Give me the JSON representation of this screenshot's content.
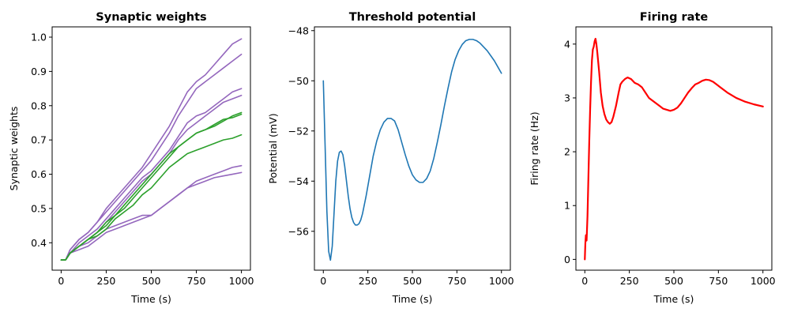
{
  "chart_data": [
    {
      "type": "line",
      "title": "Synaptic weights",
      "xlabel": "Time (s)",
      "ylabel": "Synaptic weights",
      "xlim": [
        -50,
        1050
      ],
      "ylim": [
        0.32,
        1.03
      ],
      "xticks": [
        0,
        250,
        500,
        750,
        1000
      ],
      "yticks": [
        0.4,
        0.5,
        0.6,
        0.7,
        0.8,
        0.9,
        1.0
      ],
      "xtick_labels": [
        "0",
        "250",
        "500",
        "750",
        "1000"
      ],
      "ytick_labels": [
        "0.4",
        "0.5",
        "0.6",
        "0.7",
        "0.8",
        "0.9",
        "1.0"
      ],
      "grid": false,
      "x": [
        0,
        25,
        50,
        100,
        150,
        200,
        250,
        300,
        350,
        400,
        450,
        500,
        550,
        600,
        650,
        700,
        750,
        800,
        850,
        900,
        950,
        1000
      ],
      "series": [
        {
          "color": "#9467bd",
          "values": [
            0.35,
            0.35,
            0.38,
            0.41,
            0.43,
            0.46,
            0.5,
            0.53,
            0.56,
            0.59,
            0.62,
            0.66,
            0.7,
            0.74,
            0.79,
            0.84,
            0.87,
            0.89,
            0.92,
            0.95,
            0.98,
            0.995
          ]
        },
        {
          "color": "#9467bd",
          "values": [
            0.35,
            0.35,
            0.38,
            0.41,
            0.43,
            0.46,
            0.49,
            0.52,
            0.55,
            0.58,
            0.61,
            0.64,
            0.68,
            0.72,
            0.77,
            0.81,
            0.85,
            0.87,
            0.89,
            0.91,
            0.93,
            0.95
          ]
        },
        {
          "color": "#9467bd",
          "values": [
            0.35,
            0.35,
            0.37,
            0.4,
            0.42,
            0.44,
            0.47,
            0.5,
            0.53,
            0.56,
            0.59,
            0.61,
            0.64,
            0.67,
            0.71,
            0.75,
            0.77,
            0.78,
            0.8,
            0.82,
            0.84,
            0.85
          ]
        },
        {
          "color": "#9467bd",
          "values": [
            0.35,
            0.35,
            0.37,
            0.39,
            0.41,
            0.43,
            0.46,
            0.49,
            0.52,
            0.55,
            0.58,
            0.6,
            0.63,
            0.66,
            0.7,
            0.73,
            0.75,
            0.77,
            0.79,
            0.81,
            0.82,
            0.83
          ]
        },
        {
          "color": "#9467bd",
          "values": [
            0.35,
            0.35,
            0.37,
            0.39,
            0.4,
            0.42,
            0.44,
            0.45,
            0.46,
            0.47,
            0.48,
            0.48,
            0.5,
            0.52,
            0.54,
            0.56,
            0.58,
            0.59,
            0.6,
            0.61,
            0.62,
            0.625
          ]
        },
        {
          "color": "#9467bd",
          "values": [
            0.35,
            0.35,
            0.37,
            0.38,
            0.39,
            0.41,
            0.43,
            0.44,
            0.45,
            0.46,
            0.47,
            0.48,
            0.5,
            0.52,
            0.54,
            0.56,
            0.57,
            0.58,
            0.59,
            0.595,
            0.6,
            0.605
          ]
        },
        {
          "color": "#2ca02c",
          "values": [
            0.35,
            0.35,
            0.37,
            0.39,
            0.41,
            0.43,
            0.46,
            0.48,
            0.51,
            0.54,
            0.57,
            0.6,
            0.63,
            0.66,
            0.68,
            0.7,
            0.72,
            0.73,
            0.74,
            0.755,
            0.77,
            0.78
          ]
        },
        {
          "color": "#2ca02c",
          "values": [
            0.35,
            0.35,
            0.37,
            0.39,
            0.41,
            0.43,
            0.45,
            0.48,
            0.5,
            0.53,
            0.56,
            0.59,
            0.62,
            0.65,
            0.68,
            0.7,
            0.72,
            0.73,
            0.745,
            0.76,
            0.765,
            0.775
          ]
        },
        {
          "color": "#2ca02c",
          "values": [
            0.35,
            0.35,
            0.37,
            0.39,
            0.41,
            0.42,
            0.44,
            0.47,
            0.49,
            0.51,
            0.54,
            0.56,
            0.59,
            0.62,
            0.64,
            0.66,
            0.67,
            0.68,
            0.69,
            0.7,
            0.705,
            0.715
          ]
        }
      ]
    },
    {
      "type": "line",
      "title": "Threshold potential",
      "xlabel": "Time (s)",
      "ylabel": "Potential (mV)",
      "xlim": [
        -50,
        1050
      ],
      "ylim": [
        -57.55,
        -47.85
      ],
      "xticks": [
        0,
        250,
        500,
        750,
        1000
      ],
      "yticks": [
        -56,
        -54,
        -52,
        -50,
        -48
      ],
      "xtick_labels": [
        "0",
        "250",
        "500",
        "750",
        "1000"
      ],
      "ytick_labels": [
        "−56",
        "−54",
        "−52",
        "−50",
        "−48"
      ],
      "grid": false,
      "x": [
        0,
        10,
        20,
        30,
        40,
        50,
        60,
        70,
        80,
        90,
        100,
        110,
        120,
        130,
        140,
        150,
        160,
        170,
        180,
        190,
        200,
        210,
        220,
        240,
        260,
        280,
        300,
        320,
        340,
        360,
        380,
        400,
        420,
        440,
        460,
        480,
        500,
        520,
        540,
        560,
        580,
        600,
        620,
        640,
        660,
        680,
        700,
        720,
        740,
        760,
        780,
        800,
        820,
        840,
        860,
        880,
        900,
        920,
        940,
        960,
        980,
        1000
      ],
      "series": [
        {
          "color": "#1f77b4",
          "values": [
            -50.0,
            -52.6,
            -55.2,
            -56.8,
            -57.15,
            -56.6,
            -55.3,
            -54.0,
            -53.2,
            -52.85,
            -52.8,
            -52.95,
            -53.4,
            -54.0,
            -54.6,
            -55.1,
            -55.45,
            -55.65,
            -55.75,
            -55.75,
            -55.7,
            -55.55,
            -55.3,
            -54.6,
            -53.8,
            -53.0,
            -52.4,
            -51.95,
            -51.65,
            -51.5,
            -51.5,
            -51.6,
            -51.95,
            -52.45,
            -52.95,
            -53.4,
            -53.75,
            -53.95,
            -54.05,
            -54.05,
            -53.9,
            -53.6,
            -53.1,
            -52.45,
            -51.75,
            -51.0,
            -50.3,
            -49.65,
            -49.15,
            -48.8,
            -48.55,
            -48.4,
            -48.35,
            -48.35,
            -48.4,
            -48.5,
            -48.65,
            -48.8,
            -49.0,
            -49.2,
            -49.45,
            -49.7
          ]
        }
      ]
    },
    {
      "type": "line",
      "title": "Firing rate",
      "xlabel": "Time (s)",
      "ylabel": "Firing rate (Hz)",
      "xlim": [
        -50,
        1050
      ],
      "ylim": [
        -0.2,
        4.32
      ],
      "xticks": [
        0,
        250,
        500,
        750,
        1000
      ],
      "yticks": [
        0,
        1,
        2,
        3,
        4
      ],
      "xtick_labels": [
        "0",
        "250",
        "500",
        "750",
        "1000"
      ],
      "ytick_labels": [
        "0",
        "1",
        "2",
        "3",
        "4"
      ],
      "grid": false,
      "x": [
        0,
        3,
        6,
        10,
        15,
        20,
        25,
        30,
        35,
        40,
        45,
        50,
        55,
        60,
        65,
        70,
        80,
        90,
        100,
        110,
        120,
        130,
        140,
        150,
        160,
        175,
        190,
        200,
        210,
        225,
        240,
        260,
        280,
        300,
        320,
        340,
        360,
        380,
        400,
        420,
        440,
        460,
        480,
        500,
        520,
        540,
        560,
        580,
        600,
        620,
        640,
        660,
        680,
        700,
        720,
        740,
        760,
        780,
        800,
        850,
        900,
        950,
        1000
      ],
      "series": [
        {
          "color": "#ff0000",
          "values": [
            0.0,
            0.3,
            0.45,
            0.35,
            0.8,
            1.5,
            2.2,
            2.8,
            3.3,
            3.7,
            3.9,
            3.95,
            4.05,
            4.1,
            4.0,
            3.85,
            3.5,
            3.1,
            2.85,
            2.7,
            2.6,
            2.55,
            2.52,
            2.55,
            2.65,
            2.85,
            3.1,
            3.25,
            3.3,
            3.35,
            3.38,
            3.35,
            3.28,
            3.25,
            3.2,
            3.1,
            3.0,
            2.95,
            2.9,
            2.85,
            2.8,
            2.78,
            2.76,
            2.78,
            2.82,
            2.9,
            3.0,
            3.1,
            3.18,
            3.25,
            3.28,
            3.32,
            3.34,
            3.33,
            3.3,
            3.25,
            3.2,
            3.15,
            3.1,
            3.0,
            2.93,
            2.88,
            2.84
          ]
        }
      ]
    }
  ]
}
